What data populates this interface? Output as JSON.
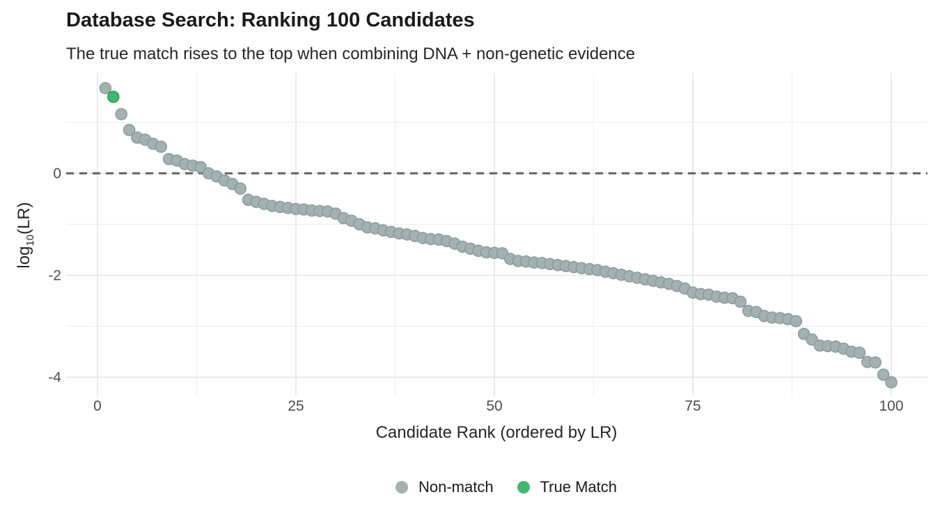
{
  "chart_data": {
    "type": "scatter",
    "title": "Database Search: Ranking 100 Candidates",
    "subtitle": "The true match rises to the top when combining DNA + non-genetic evidence",
    "xlabel": "Candidate Rank (ordered by LR)",
    "ylabel": "log10(LR)",
    "ylabel_parts": {
      "prefix": "log",
      "sub": "10",
      "suffix": "(LR)"
    },
    "x_ticks": [
      0,
      25,
      50,
      75,
      100
    ],
    "y_ticks": [
      0,
      -2,
      -4
    ],
    "x_minor_gridlines": [
      12.5,
      37.5,
      62.5,
      87.5
    ],
    "y_minor_gridlines": [
      1,
      -1,
      -3
    ],
    "xlim": [
      -4,
      104.6
    ],
    "ylim": [
      -4.37,
      1.97
    ],
    "grid": "on",
    "legend_position": "bottom-center",
    "reference_line_y": 0,
    "true_match_rank": 2,
    "legend": [
      {
        "label": "Non-match",
        "color": "#a3b1b0"
      },
      {
        "label": "True Match",
        "color": "#41b96d"
      }
    ],
    "log10_lr_by_rank": [
      1.67,
      1.5,
      1.16,
      0.85,
      0.7,
      0.66,
      0.58,
      0.52,
      0.28,
      0.25,
      0.18,
      0.15,
      0.12,
      0.0,
      -0.06,
      -0.14,
      -0.21,
      -0.3,
      -0.52,
      -0.56,
      -0.6,
      -0.64,
      -0.66,
      -0.68,
      -0.7,
      -0.71,
      -0.73,
      -0.74,
      -0.75,
      -0.79,
      -0.88,
      -0.93,
      -1.0,
      -1.06,
      -1.08,
      -1.12,
      -1.15,
      -1.18,
      -1.2,
      -1.23,
      -1.27,
      -1.29,
      -1.3,
      -1.33,
      -1.38,
      -1.44,
      -1.48,
      -1.52,
      -1.55,
      -1.56,
      -1.57,
      -1.68,
      -1.72,
      -1.73,
      -1.75,
      -1.76,
      -1.78,
      -1.8,
      -1.82,
      -1.84,
      -1.86,
      -1.88,
      -1.9,
      -1.93,
      -1.96,
      -1.99,
      -2.02,
      -2.05,
      -2.08,
      -2.11,
      -2.14,
      -2.17,
      -2.21,
      -2.26,
      -2.34,
      -2.37,
      -2.38,
      -2.42,
      -2.44,
      -2.45,
      -2.52,
      -2.7,
      -2.72,
      -2.8,
      -2.83,
      -2.84,
      -2.86,
      -2.9,
      -3.15,
      -3.26,
      -3.38,
      -3.39,
      -3.4,
      -3.44,
      -3.5,
      -3.52,
      -3.7,
      -3.71,
      -3.95,
      -4.1
    ],
    "colors": {
      "non_match_fill": "#a3b1b0",
      "non_match_stroke": "#8b9d9b",
      "true_match_fill": "#41b96d",
      "true_match_stroke": "#2c9e58",
      "grid_major": "#e4e4e4",
      "grid_minor": "#eeeeee",
      "zero_line": "#606060",
      "title_text": "#1a1a1a",
      "tick_text": "#4d4d4d"
    }
  }
}
